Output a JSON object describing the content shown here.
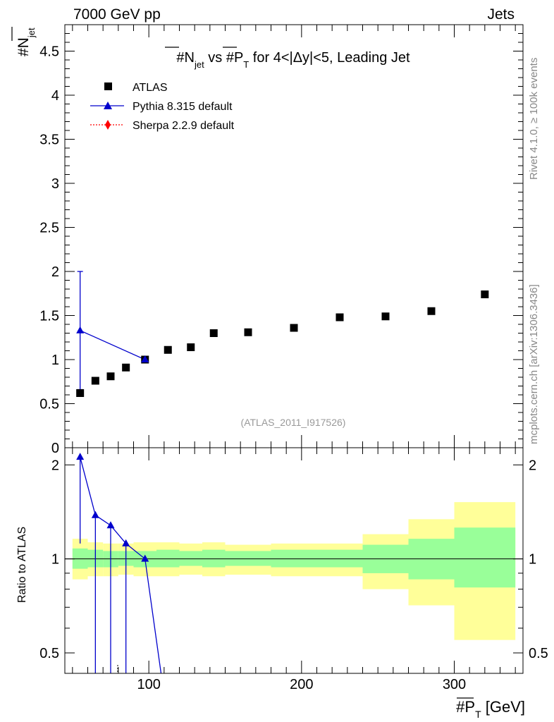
{
  "header": {
    "left": "7000 GeV pp",
    "right": "Jets"
  },
  "side_labels": {
    "rivet": "Rivet 4.1.0, ≥ 100k events",
    "source": "mcplots.cern.ch [arXiv:1306.3436]"
  },
  "chart_data": {
    "type": "scatter",
    "title": "#N̅jet vs #P̅T for 4<|Δy|<5, Leading Jet",
    "title_parts": {
      "a": "#N",
      "a_sub": "jet",
      "b": " vs #P",
      "b_sub": "T",
      "c": " for 4<|Δy|<5, Leading Jet"
    },
    "analysis_label": "(ATLAS_2011_I917526)",
    "xlabel": {
      "main": "#P",
      "sub": "T",
      "unit": " [GeV]"
    },
    "ylabel_main": {
      "main": "#N",
      "sub": "jet"
    },
    "ylabel_ratio": "Ratio to ATLAS",
    "xlim": [
      45,
      345
    ],
    "ylim_main": [
      0,
      4.8
    ],
    "ylim_ratio": [
      0.43,
      2.27
    ],
    "x_ticks": [
      100,
      200,
      300
    ],
    "y_ticks_main": [
      0,
      0.5,
      1,
      1.5,
      2,
      2.5,
      3,
      3.5,
      4,
      4.5
    ],
    "y_ticks_main_labels": [
      "0",
      "0.5",
      "1",
      "1.5",
      "2",
      "2.5",
      "3",
      "3.5",
      "4",
      "4.5"
    ],
    "y_ticks_ratio": [
      0.5,
      1,
      2
    ],
    "y_ticks_ratio_labels": [
      "0.5",
      "1",
      "2"
    ],
    "legend": [
      {
        "label": "ATLAS",
        "color": "#000000",
        "marker": "square"
      },
      {
        "label": "Pythia 8.315 default",
        "color": "#0000cc",
        "marker": "triangle"
      },
      {
        "label": "Sherpa 2.2.9 default",
        "color": "#ff0000",
        "marker": "diamond"
      }
    ],
    "atlas": {
      "x": [
        55,
        65,
        75,
        85,
        97.5,
        112.5,
        127.5,
        142.5,
        165,
        195,
        225,
        255,
        285,
        320
      ],
      "y": [
        0.62,
        0.76,
        0.81,
        0.91,
        1.0,
        1.11,
        1.14,
        1.3,
        1.31,
        1.36,
        1.48,
        1.49,
        1.55,
        1.74
      ]
    },
    "pythia": {
      "x": [
        55,
        97.5
      ],
      "y": [
        1.33,
        1.0
      ],
      "yerr_low": [
        0.67,
        0.0
      ],
      "yerr_high": [
        0.67,
        0.0
      ]
    },
    "ratio_pythia": {
      "x": [
        55,
        65,
        75,
        85,
        97.5,
        108
      ],
      "y": [
        2.12,
        1.38,
        1.28,
        1.12,
        1.0,
        0.43
      ],
      "yerr_low": [
        1.0,
        1.0,
        1.0,
        1.0,
        0.0,
        0.0
      ],
      "yerr_high": [
        0.0,
        0.0,
        0.0,
        0.0,
        0.0,
        0.0
      ]
    },
    "bands": {
      "x_edges": [
        50,
        60,
        70,
        80,
        90,
        105,
        120,
        135,
        150,
        180,
        210,
        240,
        270,
        300,
        340
      ],
      "yellow_lo": [
        0.86,
        0.88,
        0.88,
        0.89,
        0.88,
        0.88,
        0.89,
        0.88,
        0.89,
        0.88,
        0.88,
        0.8,
        0.71,
        0.55
      ],
      "yellow_hi": [
        1.16,
        1.13,
        1.12,
        1.12,
        1.13,
        1.13,
        1.12,
        1.13,
        1.11,
        1.12,
        1.12,
        1.2,
        1.34,
        1.52
      ],
      "green_lo": [
        0.93,
        0.94,
        0.94,
        0.95,
        0.94,
        0.94,
        0.95,
        0.94,
        0.95,
        0.94,
        0.94,
        0.9,
        0.86,
        0.81
      ],
      "green_hi": [
        1.08,
        1.07,
        1.06,
        1.06,
        1.06,
        1.07,
        1.06,
        1.07,
        1.06,
        1.07,
        1.07,
        1.11,
        1.16,
        1.26
      ]
    },
    "colors": {
      "yellow": "#ffff99",
      "green": "#99ff99",
      "pythia": "#0000cc",
      "sherpa": "#ff0000"
    }
  }
}
